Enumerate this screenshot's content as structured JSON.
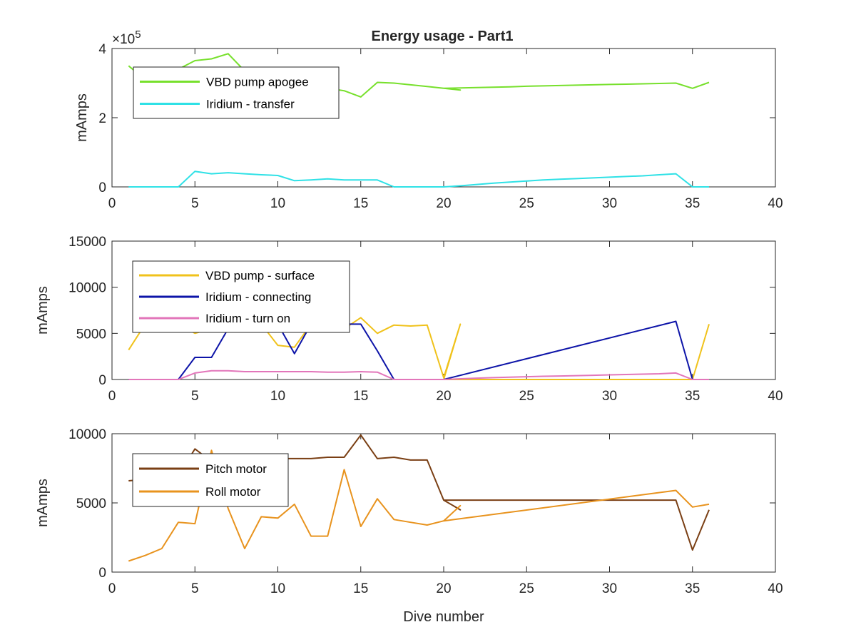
{
  "figure_title": "Energy usage - Part1",
  "chart_data": [
    {
      "type": "line",
      "title": "Energy usage - Part1",
      "xlabel": "",
      "ylabel": "mAmps",
      "xlim": [
        0,
        40
      ],
      "ylim": [
        0,
        400000
      ],
      "x_ticks": [
        "0",
        "5",
        "10",
        "15",
        "20",
        "25",
        "30",
        "35",
        "40"
      ],
      "y_ticks": [
        "0",
        "2",
        "4"
      ],
      "y_exponent_label": "×10",
      "y_exponent_power": "5",
      "legend_position": "top-left",
      "series": [
        {
          "name": "VBD pump apogee",
          "color": "#77e02c",
          "points": [
            [
              1,
              350000
            ],
            [
              2,
              310000
            ],
            [
              3,
              320000
            ],
            [
              4,
              340000
            ],
            [
              5,
              365000
            ],
            [
              6,
              370000
            ],
            [
              7,
              385000
            ],
            [
              8,
              335000
            ],
            [
              9,
              320000
            ],
            [
              10,
              300000
            ],
            [
              11,
              285000
            ],
            [
              12,
              280000
            ],
            [
              13,
              285000
            ],
            [
              14,
              278000
            ],
            [
              15,
              260000
            ],
            [
              16,
              302000
            ],
            [
              17,
              300000
            ],
            [
              18,
              295000
            ],
            [
              19,
              290000
            ],
            [
              20,
              285000
            ],
            [
              21,
              280000
            ],
            [
              20,
              285000
            ],
            [
              22,
              287000
            ],
            [
              23,
              288000
            ],
            [
              24,
              289000
            ],
            [
              25,
              291000
            ],
            [
              26,
              292000
            ],
            [
              27,
              293000
            ],
            [
              28,
              294000
            ],
            [
              29,
              295000
            ],
            [
              30,
              296000
            ],
            [
              31,
              297000
            ],
            [
              32,
              298000
            ],
            [
              33,
              299000
            ],
            [
              34,
              300000
            ],
            [
              35,
              285000
            ],
            [
              36,
              302000
            ]
          ]
        },
        {
          "name": "Iridium - transfer",
          "color": "#2fe1e6",
          "points": [
            [
              1,
              0
            ],
            [
              2,
              0
            ],
            [
              3,
              0
            ],
            [
              4,
              0
            ],
            [
              5,
              45000
            ],
            [
              6,
              38000
            ],
            [
              7,
              41000
            ],
            [
              8,
              38000
            ],
            [
              9,
              35000
            ],
            [
              10,
              33000
            ],
            [
              11,
              18000
            ],
            [
              12,
              20000
            ],
            [
              13,
              23000
            ],
            [
              14,
              20000
            ],
            [
              15,
              20000
            ],
            [
              16,
              20000
            ],
            [
              17,
              0
            ],
            [
              18,
              0
            ],
            [
              19,
              0
            ],
            [
              20,
              0
            ],
            [
              21,
              3000
            ],
            [
              22,
              7000
            ],
            [
              23,
              11000
            ],
            [
              24,
              14000
            ],
            [
              25,
              17000
            ],
            [
              26,
              20000
            ],
            [
              27,
              22000
            ],
            [
              28,
              24000
            ],
            [
              29,
              26000
            ],
            [
              30,
              28000
            ],
            [
              31,
              30000
            ],
            [
              32,
              32000
            ],
            [
              33,
              35000
            ],
            [
              34,
              38000
            ],
            [
              35,
              0
            ],
            [
              36,
              0
            ]
          ]
        }
      ]
    },
    {
      "type": "line",
      "title": "",
      "xlabel": "",
      "ylabel": "mAmps",
      "xlim": [
        0,
        40
      ],
      "ylim": [
        0,
        15000
      ],
      "x_ticks": [
        "0",
        "5",
        "10",
        "15",
        "20",
        "25",
        "30",
        "35",
        "40"
      ],
      "y_ticks": [
        "0",
        "5000",
        "10000",
        "15000"
      ],
      "legend_position": "top-left",
      "series": [
        {
          "name": "VBD pump - surface",
          "color": "#f0c21b",
          "points": [
            [
              1,
              3200
            ],
            [
              2,
              6000
            ],
            [
              3,
              6000
            ],
            [
              4,
              6000
            ],
            [
              5,
              5000
            ],
            [
              6,
              5500
            ],
            [
              7,
              5200
            ],
            [
              8,
              5800
            ],
            [
              9,
              6000
            ],
            [
              10,
              3700
            ],
            [
              11,
              3500
            ],
            [
              12,
              6000
            ],
            [
              13,
              6000
            ],
            [
              14,
              5500
            ],
            [
              15,
              6700
            ],
            [
              16,
              5000
            ],
            [
              17,
              5900
            ],
            [
              18,
              5800
            ],
            [
              19,
              5900
            ],
            [
              20,
              200
            ],
            [
              21,
              6000
            ],
            [
              20,
              0
            ],
            [
              35,
              0
            ],
            [
              36,
              6000
            ]
          ]
        },
        {
          "name": "Iridium - connecting",
          "color": "#0d14a8",
          "points": [
            [
              1,
              0
            ],
            [
              2,
              0
            ],
            [
              3,
              0
            ],
            [
              4,
              0
            ],
            [
              5,
              2400
            ],
            [
              6,
              2400
            ],
            [
              7,
              5500
            ],
            [
              8,
              6000
            ],
            [
              9,
              6000
            ],
            [
              10,
              6000
            ],
            [
              11,
              2800
            ],
            [
              12,
              6000
            ],
            [
              13,
              6000
            ],
            [
              14,
              6000
            ],
            [
              15,
              6000
            ],
            [
              16,
              3100
            ],
            [
              17,
              0
            ],
            [
              18,
              0
            ],
            [
              19,
              0
            ],
            [
              20,
              0
            ],
            [
              34,
              6300
            ],
            [
              35,
              0
            ]
          ]
        },
        {
          "name": "Iridium - turn on",
          "color": "#e276ba",
          "points": [
            [
              1,
              0
            ],
            [
              2,
              0
            ],
            [
              3,
              0
            ],
            [
              4,
              0
            ],
            [
              5,
              700
            ],
            [
              6,
              950
            ],
            [
              7,
              950
            ],
            [
              8,
              850
            ],
            [
              9,
              850
            ],
            [
              10,
              850
            ],
            [
              11,
              850
            ],
            [
              12,
              850
            ],
            [
              13,
              800
            ],
            [
              14,
              800
            ],
            [
              15,
              850
            ],
            [
              16,
              800
            ],
            [
              17,
              0
            ],
            [
              18,
              0
            ],
            [
              19,
              0
            ],
            [
              20,
              0
            ],
            [
              21,
              80
            ],
            [
              22,
              150
            ],
            [
              23,
              200
            ],
            [
              24,
              250
            ],
            [
              25,
              300
            ],
            [
              26,
              350
            ],
            [
              27,
              380
            ],
            [
              28,
              420
            ],
            [
              29,
              460
            ],
            [
              30,
              500
            ],
            [
              31,
              540
            ],
            [
              32,
              580
            ],
            [
              33,
              620
            ],
            [
              34,
              700
            ],
            [
              35,
              0
            ],
            [
              36,
              0
            ]
          ]
        }
      ]
    },
    {
      "type": "line",
      "title": "",
      "xlabel": "Dive number",
      "ylabel": "mAmps",
      "xlim": [
        0,
        40
      ],
      "ylim": [
        0,
        10000
      ],
      "x_ticks": [
        "0",
        "5",
        "10",
        "15",
        "20",
        "25",
        "30",
        "35",
        "40"
      ],
      "y_ticks": [
        "0",
        "5000",
        "10000"
      ],
      "legend_position": "top-left",
      "series": [
        {
          "name": "Pitch motor",
          "color": "#7a3f14",
          "points": [
            [
              1,
              6600
            ],
            [
              2,
              6700
            ],
            [
              3,
              6800
            ],
            [
              4,
              7000
            ],
            [
              5,
              8900
            ],
            [
              6,
              8000
            ],
            [
              7,
              8200
            ],
            [
              8,
              8200
            ],
            [
              9,
              8200
            ],
            [
              10,
              8200
            ],
            [
              11,
              8200
            ],
            [
              12,
              8200
            ],
            [
              13,
              8300
            ],
            [
              14,
              8300
            ],
            [
              15,
              9900
            ],
            [
              16,
              8200
            ],
            [
              17,
              8300
            ],
            [
              18,
              8100
            ],
            [
              19,
              8100
            ],
            [
              20,
              5200
            ],
            [
              21,
              4500
            ],
            [
              20,
              5200
            ],
            [
              34,
              5200
            ],
            [
              35,
              1600
            ],
            [
              36,
              4500
            ]
          ]
        },
        {
          "name": "Roll motor",
          "color": "#e8931e",
          "points": [
            [
              1,
              800
            ],
            [
              2,
              1200
            ],
            [
              3,
              1700
            ],
            [
              4,
              3600
            ],
            [
              5,
              3500
            ],
            [
              6,
              8800
            ],
            [
              7,
              4600
            ],
            [
              8,
              1700
            ],
            [
              9,
              4000
            ],
            [
              10,
              3900
            ],
            [
              11,
              4900
            ],
            [
              12,
              2600
            ],
            [
              13,
              2600
            ],
            [
              14,
              7400
            ],
            [
              15,
              3300
            ],
            [
              16,
              5300
            ],
            [
              17,
              3800
            ],
            [
              18,
              3600
            ],
            [
              19,
              3400
            ],
            [
              20,
              3700
            ],
            [
              21,
              4800
            ],
            [
              20,
              3700
            ],
            [
              34,
              5900
            ],
            [
              35,
              4700
            ],
            [
              36,
              4900
            ]
          ]
        }
      ]
    }
  ]
}
